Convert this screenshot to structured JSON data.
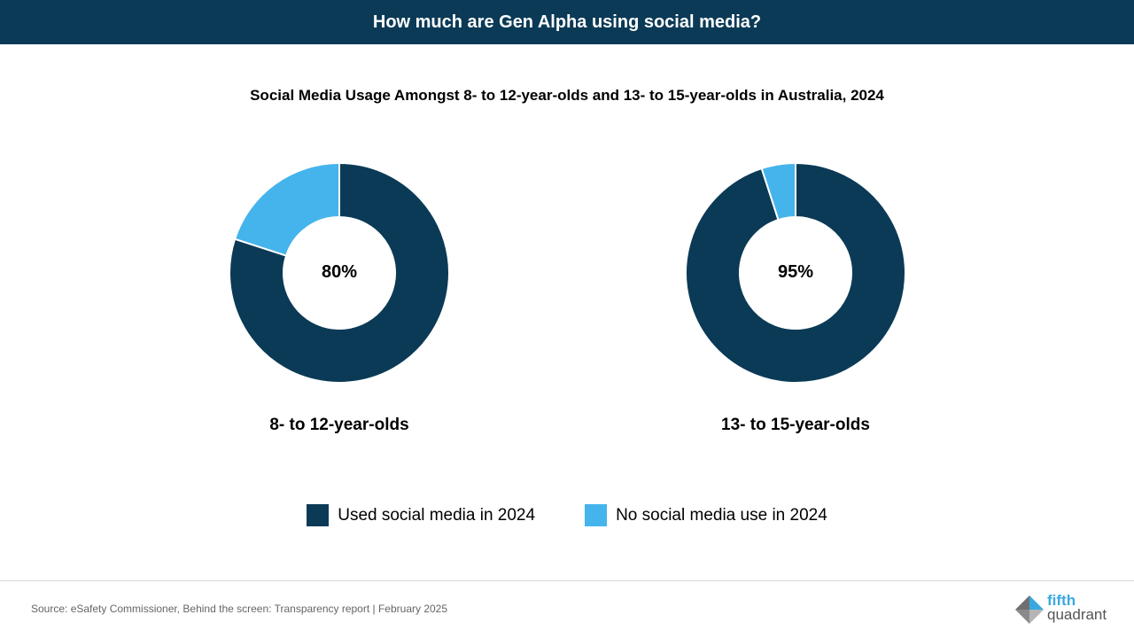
{
  "header": {
    "title": "How much are Gen Alpha using social media?"
  },
  "colors": {
    "banner": "#0b3a56",
    "used": "#0b3a56",
    "not_used": "#45b4ec"
  },
  "chart_data": [
    {
      "type": "pie",
      "subtype": "donut",
      "title": "Social Media Usage Amongst 8- to 12-year-olds and 13- to 15-year-olds in Australia, 2024",
      "group": "8- to 12-year-olds",
      "center_label": "80%",
      "categories": [
        "Used social media in 2024",
        "No social media use in 2024"
      ],
      "values": [
        80,
        20
      ]
    },
    {
      "type": "pie",
      "subtype": "donut",
      "group": "13- to 15-year-olds",
      "center_label": "95%",
      "categories": [
        "Used social media in 2024",
        "No social media use in 2024"
      ],
      "values": [
        95,
        5
      ]
    }
  ],
  "legend": [
    {
      "label": "Used social media in 2024"
    },
    {
      "label": "No social media use in 2024"
    }
  ],
  "footer": {
    "source": "Source: eSafety Commissioner, Behind the screen: Transparency report | February 2025"
  },
  "logo": {
    "line1": "fifth",
    "line2": "quadrant"
  }
}
